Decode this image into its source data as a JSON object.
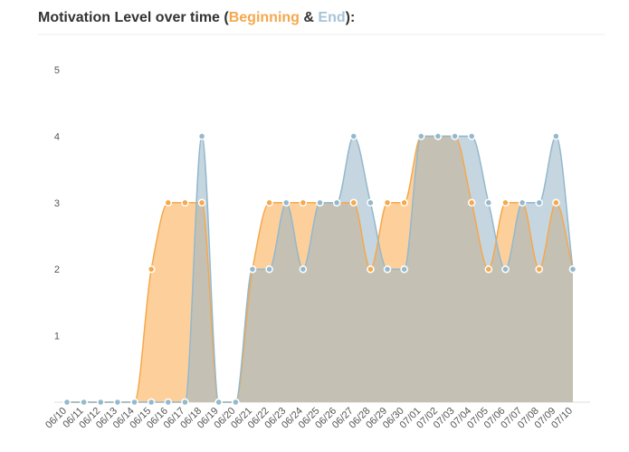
{
  "chart_data": {
    "type": "area",
    "title": {
      "prefix": "Motivation Level over time (",
      "joiner": "&",
      "suffix": "):"
    },
    "categories": [
      "06/10",
      "06/11",
      "06/12",
      "06/13",
      "06/14",
      "06/15",
      "06/16",
      "06/17",
      "06/18",
      "06/19",
      "06/20",
      "06/21",
      "06/22",
      "06/23",
      "06/24",
      "06/25",
      "06/26",
      "06/27",
      "06/28",
      "06/29",
      "06/30",
      "07/01",
      "07/02",
      "07/03",
      "07/04",
      "07/05",
      "07/06",
      "07/07",
      "07/08",
      "07/09",
      "07/10"
    ],
    "series": [
      {
        "name": "Beginning",
        "color": "#f5a84c",
        "values": [
          0,
          0,
          0,
          0,
          0,
          2,
          3,
          3,
          3,
          0,
          0,
          2,
          3,
          3,
          3,
          3,
          3,
          3,
          2,
          3,
          3,
          4,
          4,
          4,
          3,
          2,
          3,
          3,
          2,
          3,
          2
        ]
      },
      {
        "name": "End",
        "color": "#94b8cc",
        "values": [
          0,
          0,
          0,
          0,
          0,
          0,
          0,
          0,
          4,
          0,
          0,
          2,
          2,
          3,
          2,
          3,
          3,
          4,
          3,
          2,
          2,
          4,
          4,
          4,
          4,
          3,
          2,
          3,
          3,
          4,
          2
        ]
      }
    ],
    "ylim": [
      0,
      5
    ],
    "yticks": [
      1,
      2,
      3,
      4,
      5
    ]
  }
}
